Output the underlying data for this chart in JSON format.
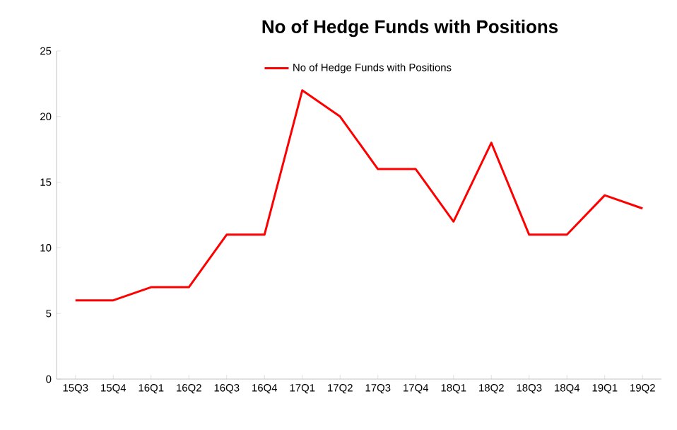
{
  "chart_data": {
    "type": "line",
    "title": "No of Hedge Funds with Positions",
    "categories": [
      "15Q3",
      "15Q4",
      "16Q1",
      "16Q2",
      "16Q3",
      "16Q4",
      "17Q1",
      "17Q2",
      "17Q3",
      "17Q4",
      "18Q1",
      "18Q2",
      "18Q3",
      "18Q4",
      "19Q1",
      "19Q2"
    ],
    "series": [
      {
        "name": "No of Hedge Funds with Positions",
        "color": "#ff0000",
        "values": [
          6,
          6,
          7,
          7,
          11,
          11,
          22,
          20,
          16,
          16,
          12,
          18,
          11,
          11,
          14,
          13
        ]
      }
    ],
    "ylim": [
      0,
      25
    ],
    "yticks": [
      0,
      5,
      10,
      15,
      20,
      25
    ],
    "grid": false,
    "legend": "top",
    "marker": "none",
    "line_style": "solid"
  }
}
